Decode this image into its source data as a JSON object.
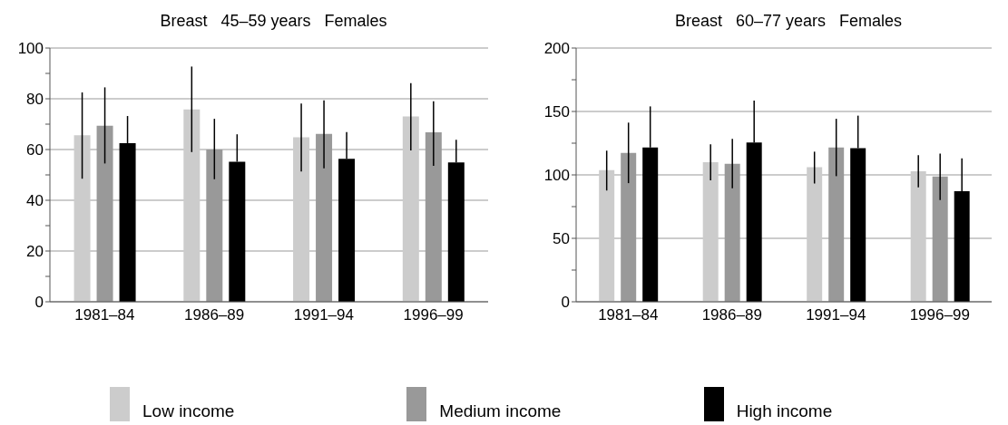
{
  "chart_data": [
    {
      "type": "bar",
      "title": "Breast   45–59 years   Females",
      "categories": [
        "1981–84",
        "1986–89",
        "1991–94",
        "1996–99"
      ],
      "ylim": [
        0,
        100
      ],
      "yticks": [
        0,
        {
          "value": 10,
          "label": null
        },
        20,
        {
          "value": 30,
          "label": null
        },
        40,
        {
          "value": 50,
          "label": null
        },
        60,
        {
          "value": 70,
          "label": null
        },
        80,
        {
          "value": 90,
          "label": null
        },
        100
      ],
      "grid": "y",
      "legend": "bottom",
      "series": [
        {
          "name": "Low income",
          "color": "#cccccc",
          "values": [
            65.6,
            75.8,
            64.8,
            73
          ],
          "errors": [
            [
              48.5,
              82.5
            ],
            [
              59,
              92.7
            ],
            [
              51.3,
              78.1
            ],
            [
              59.6,
              86.2
            ]
          ]
        },
        {
          "name": "Medium income",
          "color": "#999999",
          "values": [
            69.4,
            60,
            66.2,
            66.8
          ],
          "errors": [
            [
              54.5,
              84.5
            ],
            [
              48.3,
              72.1
            ],
            [
              52.6,
              79.4
            ],
            [
              53.6,
              79
            ]
          ]
        },
        {
          "name": "High income",
          "color": "#000000",
          "values": [
            62.5,
            55.2,
            56.3,
            54.9
          ],
          "errors": [
            [
              62.5,
              73.2
            ],
            [
              55.2,
              66
            ],
            [
              56.3,
              66.9
            ],
            [
              54.9,
              63.8
            ]
          ]
        }
      ]
    },
    {
      "type": "bar",
      "title": "Breast   60–77 years   Females",
      "categories": [
        "1981–84",
        "1986–89",
        "1991–94",
        "1996–99"
      ],
      "ylim": [
        0,
        200
      ],
      "yticks": [
        0,
        {
          "value": 25,
          "label": null
        },
        50,
        {
          "value": 75,
          "label": null
        },
        100,
        {
          "value": 125,
          "label": null
        },
        150,
        {
          "value": 175,
          "label": null
        },
        200
      ],
      "grid": "y",
      "series": [
        {
          "color": "#cccccc",
          "values": [
            103.8,
            110,
            106,
            102.8
          ],
          "errors": [
            [
              87.7,
              119.1
            ],
            [
              95.7,
              124.1
            ],
            [
              93.2,
              118.3
            ],
            [
              90.2,
              115.6
            ]
          ]
        },
        {
          "color": "#999999",
          "values": [
            117.3,
            108.8,
            121.6,
            98.7
          ],
          "errors": [
            [
              93.5,
              141.2
            ],
            [
              89.4,
              128.4
            ],
            [
              99,
              144.2
            ],
            [
              80.2,
              116.8
            ]
          ]
        },
        {
          "color": "#000000",
          "values": [
            121.6,
            125.6,
            121.1,
            87.2
          ],
          "errors": [
            [
              121.6,
              154
            ],
            [
              125.6,
              158.5
            ],
            [
              121.1,
              146.7
            ],
            [
              87.2,
              113.1
            ]
          ]
        }
      ]
    }
  ]
}
